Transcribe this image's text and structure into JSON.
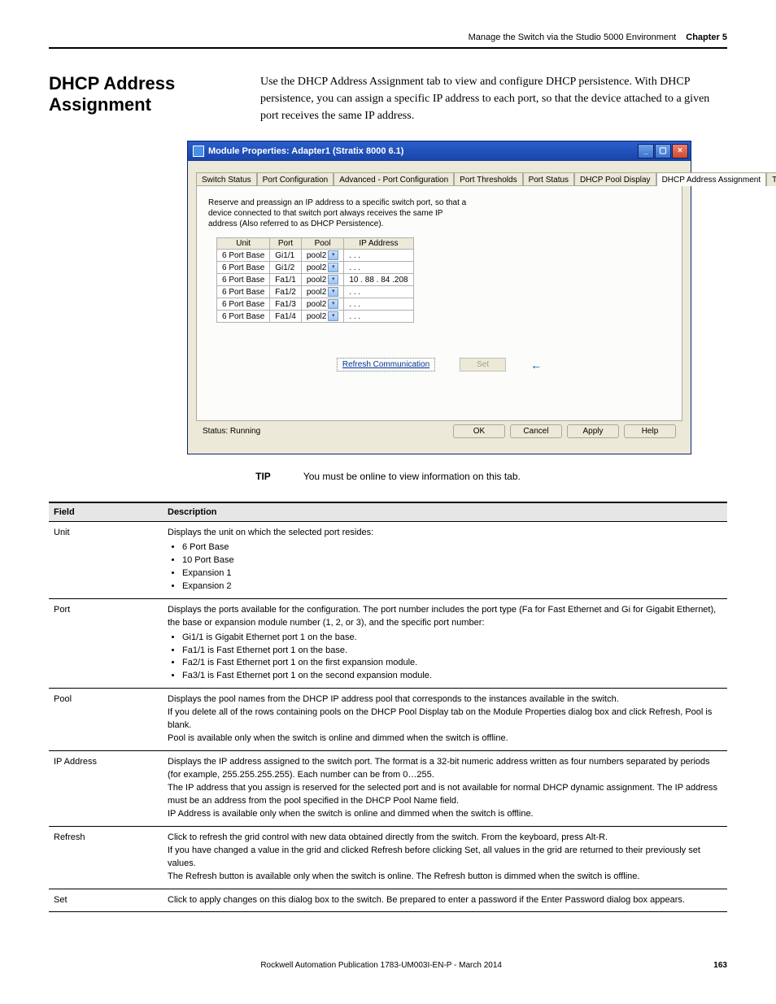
{
  "header": {
    "chapter_title": "Manage the Switch via the Studio 5000 Environment",
    "chapter_label": "Chapter 5"
  },
  "section": {
    "title": "DHCP Address Assignment",
    "body": "Use the DHCP Address Assignment tab to view and configure DHCP persistence. With DHCP persistence, you can assign a specific IP address to each port, so that the device attached to a given port receives the same IP address."
  },
  "dialog": {
    "title": "Module Properties: Adapter1 (Stratix 8000 6.1)",
    "win_min": "_",
    "win_max": "▢",
    "win_close": "×",
    "tabs": [
      "Switch Status",
      "Port Configuration",
      "Advanced - Port Configuration",
      "Port Thresholds",
      "Port Status",
      "DHCP Pool Display",
      "DHCP Address Assignment",
      "Time Sync C"
    ],
    "nav_arrows": "◂ ▸",
    "intro": "Reserve and preassign an IP address to a specific switch port, so that a device connected to that switch port always receives the same IP address (Also referred to as DHCP Persistence).",
    "columns": {
      "unit": "Unit",
      "port": "Port",
      "pool": "Pool",
      "ip": "IP Address"
    },
    "rows": [
      {
        "unit": "6 Port Base",
        "port": "Gi1/1",
        "pool": "pool2",
        "ip": ". . ."
      },
      {
        "unit": "6 Port Base",
        "port": "Gi1/2",
        "pool": "pool2",
        "ip": ". . ."
      },
      {
        "unit": "6 Port Base",
        "port": "Fa1/1",
        "pool": "pool2",
        "ip": "10 . 88 . 84 .208"
      },
      {
        "unit": "6 Port Base",
        "port": "Fa1/2",
        "pool": "pool2",
        "ip": ". . ."
      },
      {
        "unit": "6 Port Base",
        "port": "Fa1/3",
        "pool": "pool2",
        "ip": ". . ."
      },
      {
        "unit": "6 Port Base",
        "port": "Fa1/4",
        "pool": "pool2",
        "ip": ". . ."
      }
    ],
    "refresh_link": "Refresh Communication",
    "set_btn": "Set",
    "arrow": "←",
    "status": "Status: Running",
    "btn_ok": "OK",
    "btn_cancel": "Cancel",
    "btn_apply": "Apply",
    "btn_help": "Help"
  },
  "tip": {
    "label": "TIP",
    "text": "You must be online to view information on this tab."
  },
  "desc_table": {
    "h_field": "Field",
    "h_desc": "Description",
    "rows": {
      "unit": {
        "field": "Unit",
        "lead": "Displays the unit on which the selected port resides:",
        "items": [
          "6 Port Base",
          "10 Port Base",
          "Expansion 1",
          "Expansion 2"
        ]
      },
      "port": {
        "field": "Port",
        "lead": "Displays the ports available for the configuration. The port number includes the port type (Fa for Fast Ethernet and Gi for Gigabit Ethernet), the base or expansion module number (1, 2, or 3), and the specific port number:",
        "items": [
          "Gi1/1 is Gigabit Ethernet port 1 on the base.",
          "Fa1/1 is Fast Ethernet port 1 on the base.",
          "Fa2/1 is Fast Ethernet port 1 on the first expansion module.",
          "Fa3/1 is Fast Ethernet port 1 on the second expansion module."
        ]
      },
      "pool": {
        "field": "Pool",
        "p1": "Displays the pool names from the DHCP IP address pool that corresponds to the instances available in the switch.",
        "p2": "If you delete all of the rows containing pools on the DHCP Pool Display tab on the Module Properties dialog box and click Refresh, Pool is blank.",
        "p3": "Pool is available only when the switch is online and dimmed when the switch is offline."
      },
      "ip": {
        "field": "IP Address",
        "p1": "Displays the IP address assigned to the switch port. The format is a 32-bit numeric address written as four numbers separated by periods (for example, 255.255.255.255). Each number can be from 0…255.",
        "p2": "The IP address that you assign is reserved for the selected port and is not available for normal DHCP dynamic assignment. The IP address must be an address from the pool specified in the DHCP Pool Name field.",
        "p3": "IP Address is available only when the switch is online and dimmed when the switch is offline."
      },
      "refresh": {
        "field": "Refresh",
        "p1": "Click to refresh the grid control with new data obtained directly from the switch. From the keyboard, press Alt-R.",
        "p2": "If you have changed a value in the grid and clicked Refresh before clicking Set, all values in the grid are returned to their previously set values.",
        "p3": "The Refresh button is available only when the switch is online. The Refresh button is dimmed when the switch is offline."
      },
      "set": {
        "field": "Set",
        "p1": "Click to apply changes on this dialog box to the switch. Be prepared to enter a password if the Enter Password dialog box appears."
      }
    }
  },
  "footer": {
    "pub": "Rockwell Automation Publication 1783-UM003I-EN-P - March 2014",
    "page": "163"
  }
}
